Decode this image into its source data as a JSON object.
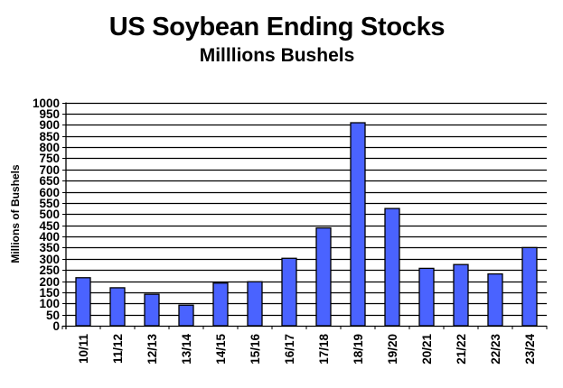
{
  "chart_data": {
    "type": "bar",
    "title": "US Soybean Ending Stocks",
    "subtitle": "Milllions Bushels",
    "xlabel": "",
    "ylabel": "Millions of Bushels",
    "ylim": [
      0,
      1000
    ],
    "ytick_step": 50,
    "grid": true,
    "legend": null,
    "bar_color": "#4a63ff",
    "bar_edge_color": "#000000",
    "categories": [
      "10/11",
      "11/12",
      "12/13",
      "13/14",
      "14/15",
      "15/16",
      "16/17",
      "17/18",
      "18/19",
      "19/20",
      "20/21",
      "21/22",
      "22/23",
      "23/24"
    ],
    "values": [
      215,
      170,
      141,
      92,
      191,
      197,
      302,
      438,
      909,
      525,
      257,
      274,
      232,
      350
    ]
  }
}
